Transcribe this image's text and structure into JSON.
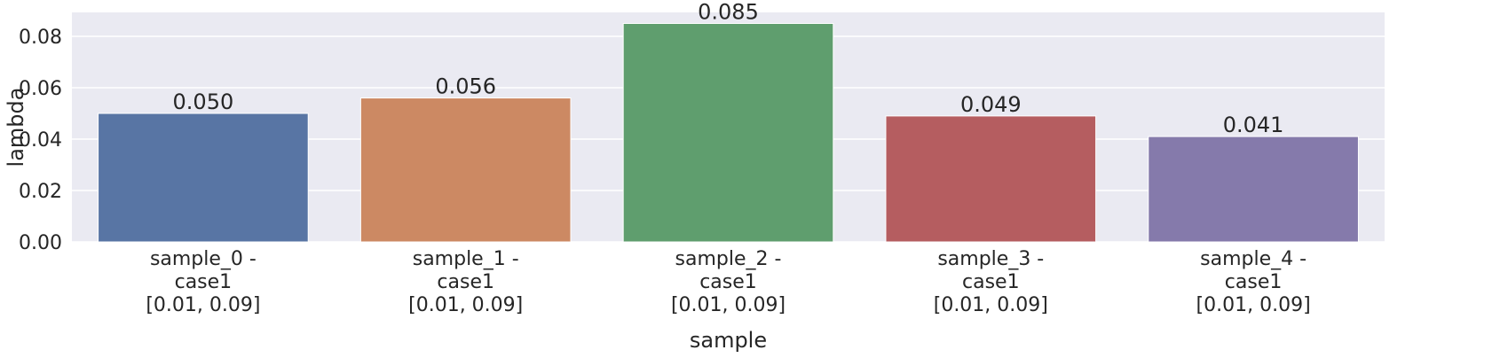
{
  "chart_data": {
    "type": "bar",
    "categories": [
      [
        "sample_0 -",
        "case1",
        "[0.01, 0.09]"
      ],
      [
        "sample_1 -",
        "case1",
        "[0.01, 0.09]"
      ],
      [
        "sample_2 -",
        "case1",
        "[0.01, 0.09]"
      ],
      [
        "sample_3 -",
        "case1",
        "[0.01, 0.09]"
      ],
      [
        "sample_4 -",
        "case1",
        "[0.01, 0.09]"
      ]
    ],
    "values": [
      0.05,
      0.056,
      0.085,
      0.049,
      0.041
    ],
    "value_labels": [
      "0.050",
      "0.056",
      "0.085",
      "0.049",
      "0.041"
    ],
    "colors": [
      "#5875a4",
      "#cc8963",
      "#5f9e6e",
      "#b55d60",
      "#857aab"
    ],
    "xlabel": "sample",
    "ylabel": "lambda",
    "ylim": [
      0,
      0.0893
    ],
    "yticks": [
      0.0,
      0.02,
      0.04,
      0.06,
      0.08
    ],
    "ytick_labels": [
      "0.00",
      "0.02",
      "0.04",
      "0.06",
      "0.08"
    ],
    "grid": true,
    "background": "#eaeaf2"
  }
}
